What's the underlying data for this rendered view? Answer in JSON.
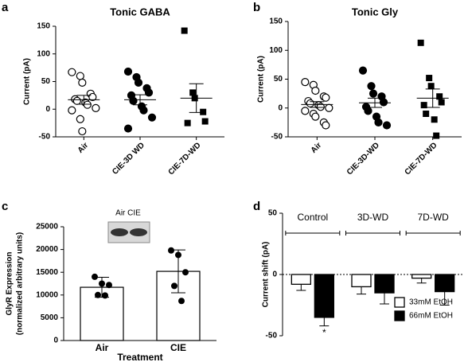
{
  "chart_data": [
    {
      "panel": "a",
      "type": "dotplot",
      "title": "Tonic GABA",
      "y_label": "Current (pA)",
      "categories": [
        "Air",
        "CIE-3D WD",
        "CIE-7D-WD"
      ],
      "groups": [
        {
          "marker": "circle-open",
          "values": [
            67,
            60,
            48,
            28,
            22,
            18,
            15,
            12,
            8,
            2,
            -2,
            -18,
            -40
          ],
          "mean": 17,
          "sem": 8
        },
        {
          "marker": "circle-filled",
          "values": [
            68,
            58,
            48,
            38,
            30,
            25,
            15,
            5,
            -2,
            -15,
            -35
          ],
          "mean": 17,
          "sem": 9
        },
        {
          "marker": "square-filled",
          "values": [
            142,
            30,
            20,
            -5,
            -22,
            -25
          ],
          "mean": 20,
          "sem": 26
        }
      ],
      "ylim": [
        -50,
        150
      ],
      "yticks": [
        -50,
        0,
        50,
        100,
        150
      ]
    },
    {
      "panel": "b",
      "type": "dotplot",
      "title": "Tonic Gly",
      "y_label": "Current (pA)",
      "categories": [
        "Air",
        "CIE-3D-WD",
        "CIE-7D-WD"
      ],
      "groups": [
        {
          "marker": "circle-open",
          "values": [
            45,
            40,
            30,
            20,
            18,
            12,
            8,
            5,
            2,
            0,
            -5,
            -10,
            -15,
            -25,
            -30
          ],
          "mean": 6,
          "sem": 5
        },
        {
          "marker": "circle-filled",
          "values": [
            65,
            38,
            25,
            20,
            10,
            2,
            -5,
            -15,
            -25,
            -30
          ],
          "mean": 9,
          "sem": 8
        },
        {
          "marker": "square-filled",
          "values": [
            113,
            52,
            38,
            20,
            10,
            5,
            -10,
            -20,
            -48
          ],
          "mean": 17,
          "sem": 16
        }
      ],
      "ylim": [
        -50,
        150
      ],
      "yticks": [
        -50,
        0,
        50,
        100,
        150
      ]
    },
    {
      "panel": "c",
      "type": "bar",
      "y_label": [
        "GlyR Expression",
        "(normalized arbitrary units)"
      ],
      "x_label": "Treatment",
      "inset_label": "Air CIE",
      "categories": [
        "Air",
        "CIE"
      ],
      "values": [
        11700,
        15200
      ],
      "errors": [
        2200,
        4700
      ],
      "points": [
        [
          14000,
          12500,
          12200,
          10000,
          9900
        ],
        [
          19800,
          18800,
          15000,
          12000,
          8700
        ]
      ],
      "color": "#ffffff",
      "ylim": [
        0,
        25000
      ],
      "yticks": [
        0,
        5000,
        10000,
        15000,
        20000,
        25000
      ]
    },
    {
      "panel": "d",
      "type": "grouped-bar",
      "y_label": "Current shift (pA)",
      "categories": [
        "Control",
        "3D-WD",
        "7D-WD"
      ],
      "series": [
        {
          "name": "33mM EtOH",
          "color": "#ffffff",
          "values": [
            -8,
            -10,
            -3
          ],
          "errors": [
            5,
            6,
            4
          ]
        },
        {
          "name": "66mM EtOH",
          "color": "#000000",
          "values": [
            -35,
            -15,
            -14
          ],
          "errors": [
            7,
            9,
            11
          ]
        }
      ],
      "annotation": "*",
      "legend": "lower right",
      "ylim": [
        -50,
        50
      ],
      "yticks": [
        -50,
        0,
        50
      ]
    }
  ]
}
